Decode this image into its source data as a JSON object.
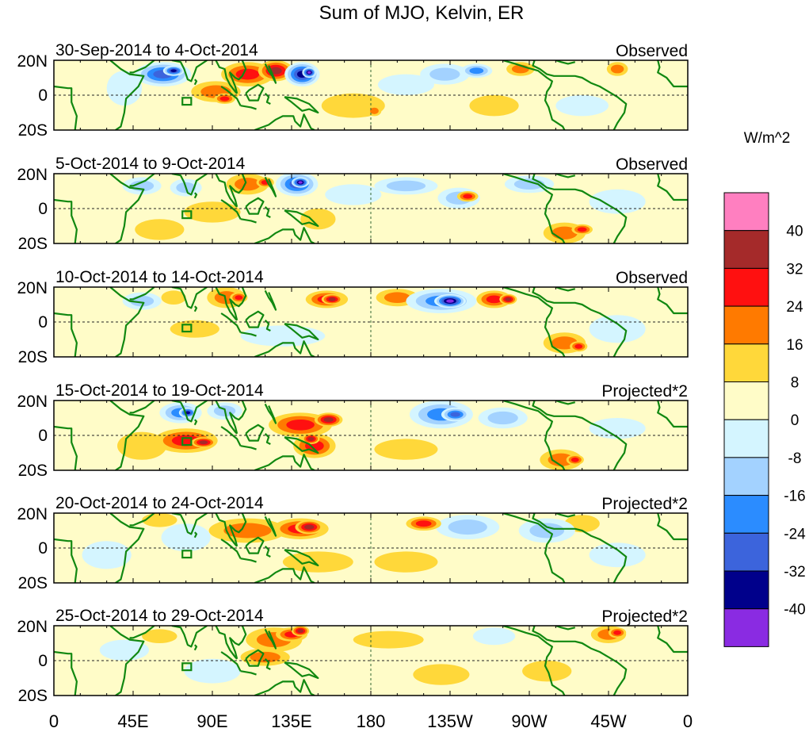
{
  "title": "Sum of MJO, Kelvin, ER",
  "units": "W/m^2",
  "latitude_labels": [
    "20N",
    "0",
    "20S"
  ],
  "longitude_labels": [
    "0",
    "45E",
    "90E",
    "135E",
    "180",
    "135W",
    "90W",
    "45W",
    "0"
  ],
  "colorbar": {
    "labels": [
      "40",
      "32",
      "24",
      "16",
      "8",
      "0",
      "-8",
      "-16",
      "-24",
      "-32",
      "-40"
    ],
    "colors": [
      "#ff7fc0",
      "#a52a2a",
      "#ff1010",
      "#ff7a00",
      "#ffd83a",
      "#fffcc8",
      "#d4f5ff",
      "#a3d2ff",
      "#2b8cff",
      "#3c64dc",
      "#00008b",
      "#8a2be2"
    ]
  },
  "colors": {
    "coast": "#118811",
    "frame": "#000000"
  },
  "panels": [
    {
      "period": "30-Sep-2014 to 4-Oct-2014",
      "type": "Observed"
    },
    {
      "period": "5-Oct-2014 to 9-Oct-2014",
      "type": "Observed"
    },
    {
      "period": "10-Oct-2014 to 14-Oct-2014",
      "type": "Observed"
    },
    {
      "period": "15-Oct-2014 to 19-Oct-2014",
      "type": "Projected*2"
    },
    {
      "period": "20-Oct-2014 to 24-Oct-2014",
      "type": "Projected*2"
    },
    {
      "period": "25-Oct-2014 to 29-Oct-2014",
      "type": "Projected*2"
    }
  ]
}
